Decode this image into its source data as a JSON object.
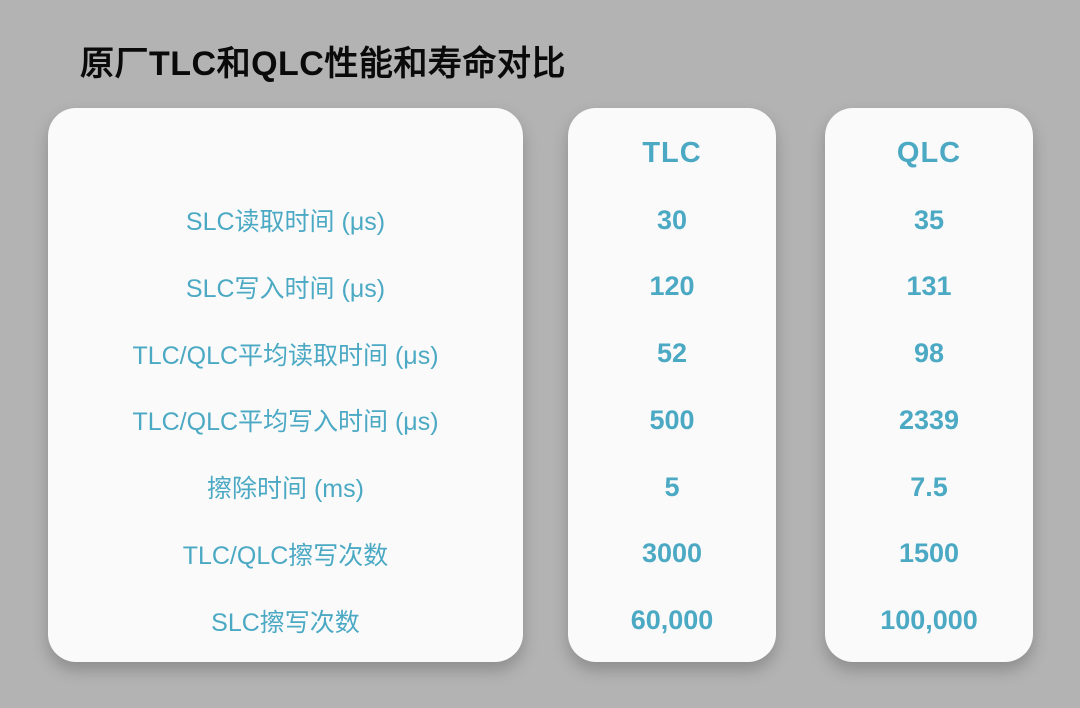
{
  "page": {
    "title": "原厂TLC和QLC性能和寿命对比"
  },
  "colors": {
    "accent_teal": "#4BA9C4",
    "background_gray": "#B3B3B3",
    "card_white": "#FAFAFA",
    "title_black": "#0A0A0A"
  },
  "table": {
    "row_labels": [
      "SLC读取时间 (μs)",
      "SLC写入时间 (μs)",
      "TLC/QLC平均读取时间 (μs)",
      "TLC/QLC平均写入时间 (μs)",
      "擦除时间 (ms)",
      "TLC/QLC擦写次数",
      "SLC擦写次数"
    ],
    "columns": [
      {
        "header": "TLC",
        "values": [
          "30",
          "120",
          "52",
          "500",
          "5",
          "3000",
          "60,000"
        ]
      },
      {
        "header": "QLC",
        "values": [
          "35",
          "131",
          "98",
          "2339",
          "7.5",
          "1500",
          "100,000"
        ]
      }
    ]
  },
  "chart_data": {
    "type": "table",
    "title": "原厂TLC和QLC性能和寿命对比",
    "row_labels": [
      "SLC读取时间 (μs)",
      "SLC写入时间 (μs)",
      "TLC/QLC平均读取时间 (μs)",
      "TLC/QLC平均写入时间 (μs)",
      "擦除时间 (ms)",
      "TLC/QLC擦写次数",
      "SLC擦写次数"
    ],
    "columns": [
      "TLC",
      "QLC"
    ],
    "rows": [
      [
        "30",
        "35"
      ],
      [
        "120",
        "131"
      ],
      [
        "52",
        "98"
      ],
      [
        "500",
        "2339"
      ],
      [
        "5",
        "7.5"
      ],
      [
        "3000",
        "1500"
      ],
      [
        "60,000",
        "100,000"
      ]
    ],
    "layout_hints": {
      "legend_position": "none",
      "grid": false,
      "value_color": "#4BA9C4",
      "card_background": "#FAFAFA",
      "page_background": "#B3B3B3"
    }
  }
}
